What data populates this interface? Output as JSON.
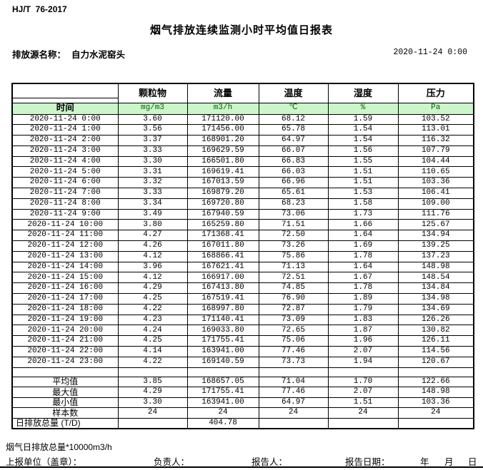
{
  "doc": {
    "standard": "HJ/T  76-2017",
    "title": "烟气排放连续监测小时平均值日报表",
    "source_label": "排放源名称：",
    "source_name": "自力水泥窑头",
    "datetime": "2020-11-24 0:00"
  },
  "table": {
    "time_header": "时间",
    "columns": [
      "颗粒物",
      "流量",
      "温度",
      "湿度",
      "压力"
    ],
    "units": [
      "mg/m3",
      "m3/h",
      "℃",
      "%",
      "Pa"
    ],
    "rows": [
      [
        "2020-11-24 0:00",
        "3.60",
        "171120.00",
        "68.12",
        "1.59",
        "103.52"
      ],
      [
        "2020-11-24 1:00",
        "3.56",
        "171456.00",
        "65.78",
        "1.54",
        "113.01"
      ],
      [
        "2020-11-24 2:00",
        "3.37",
        "168901.20",
        "64.97",
        "1.54",
        "116.32"
      ],
      [
        "2020-11-24 3:00",
        "3.33",
        "169629.59",
        "66.07",
        "1.56",
        "107.79"
      ],
      [
        "2020-11-24 4:00",
        "3.30",
        "166501.80",
        "66.83",
        "1.55",
        "104.44"
      ],
      [
        "2020-11-24 5:00",
        "3.31",
        "169619.41",
        "66.03",
        "1.51",
        "110.65"
      ],
      [
        "2020-11-24 6:00",
        "3.32",
        "167013.59",
        "66.96",
        "1.51",
        "103.36"
      ],
      [
        "2020-11-24 7:00",
        "3.33",
        "169879.20",
        "65.61",
        "1.53",
        "106.41"
      ],
      [
        "2020-11-24 8:00",
        "3.34",
        "169720.80",
        "68.23",
        "1.58",
        "109.00"
      ],
      [
        "2020-11-24 9:00",
        "3.49",
        "167940.59",
        "73.06",
        "1.73",
        "111.76"
      ],
      [
        "2020-11-24 10:00",
        "3.80",
        "165259.80",
        "71.51",
        "1.66",
        "125.67"
      ],
      [
        "2020-11-24 11:00",
        "4.27",
        "171368.41",
        "72.50",
        "1.64",
        "134.94"
      ],
      [
        "2020-11-24 12:00",
        "4.26",
        "167011.80",
        "73.26",
        "1.69",
        "139.25"
      ],
      [
        "2020-11-24 13:00",
        "4.12",
        "168866.41",
        "75.86",
        "1.78",
        "137.23"
      ],
      [
        "2020-11-24 14:00",
        "3.96",
        "167621.41",
        "71.13",
        "1.64",
        "148.98"
      ],
      [
        "2020-11-24 15:00",
        "4.12",
        "166917.00",
        "72.51",
        "1.67",
        "148.54"
      ],
      [
        "2020-11-24 16:00",
        "4.29",
        "167413.80",
        "74.85",
        "1.78",
        "134.84"
      ],
      [
        "2020-11-24 17:00",
        "4.25",
        "167519.41",
        "76.90",
        "1.89",
        "134.98"
      ],
      [
        "2020-11-24 18:00",
        "4.22",
        "168997.80",
        "72.87",
        "1.79",
        "134.69"
      ],
      [
        "2020-11-24 19:00",
        "4.23",
        "171140.41",
        "73.09",
        "1.83",
        "126.26"
      ],
      [
        "2020-11-24 20:00",
        "4.24",
        "169033.80",
        "72.65",
        "1.87",
        "130.82"
      ],
      [
        "2020-11-24 21:00",
        "4.25",
        "171755.41",
        "75.06",
        "1.96",
        "126.11"
      ],
      [
        "2020-11-24 22:00",
        "4.14",
        "163941.00",
        "77.46",
        "2.07",
        "114.56"
      ],
      [
        "2020-11-24 23:00",
        "4.22",
        "169140.59",
        "73.73",
        "1.94",
        "120.67"
      ]
    ],
    "summary": [
      [
        "平均值",
        "3.85",
        "168657.05",
        "71.04",
        "1.70",
        "122.66"
      ],
      [
        "最大值",
        "4.29",
        "171755.41",
        "77.46",
        "2.07",
        "148.98"
      ],
      [
        "最小值",
        "3.30",
        "163941.00",
        "64.97",
        "1.51",
        "103.36"
      ],
      [
        "样本数",
        "24",
        "24",
        "24",
        "24",
        "24"
      ],
      [
        "日排放总量 (T/D)",
        "",
        "404.78",
        "",
        "",
        ""
      ]
    ]
  },
  "footer": {
    "note": "烟气日排放总量*10000m3/h",
    "report_unit": "上报单位（盖章）：",
    "responsible": "负责人：",
    "reporter": "报告人：",
    "report_date": "报告日期：",
    "year": "年",
    "month": "月",
    "day": "日"
  },
  "colors": {
    "header_green_bg": "#ccf5cc",
    "unit_text_green": "#006100",
    "border": "#000000"
  }
}
